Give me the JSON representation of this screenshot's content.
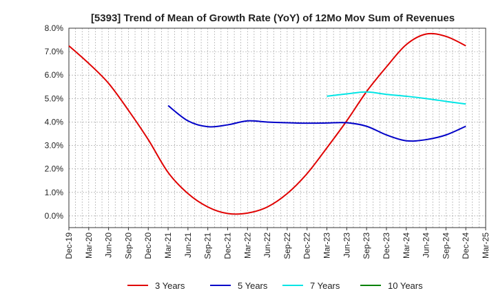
{
  "chart_data": {
    "type": "line",
    "title": "[5393]  Trend of Mean of Growth Rate (YoY) of 12Mo Mov Sum of Revenues",
    "xlabel": "",
    "ylabel": "",
    "ylim": [
      -0.5,
      8.0
    ],
    "yticks": [
      0.0,
      1.0,
      2.0,
      3.0,
      4.0,
      5.0,
      6.0,
      7.0,
      8.0
    ],
    "ytick_labels": [
      "0.0%",
      "1.0%",
      "2.0%",
      "3.0%",
      "4.0%",
      "5.0%",
      "6.0%",
      "7.0%",
      "8.0%"
    ],
    "categories": [
      "Dec-19",
      "Mar-20",
      "Jun-20",
      "Sep-20",
      "Dec-20",
      "Mar-21",
      "Jun-21",
      "Sep-21",
      "Dec-21",
      "Mar-22",
      "Jun-22",
      "Sep-22",
      "Dec-22",
      "Mar-23",
      "Jun-23",
      "Sep-23",
      "Dec-23",
      "Mar-24",
      "Jun-24",
      "Sep-24",
      "Dec-24",
      "Mar-25"
    ],
    "grid": true,
    "legend_position": "bottom",
    "series": [
      {
        "name": "3 Years",
        "color": "#e00000",
        "values": [
          7.25,
          6.5,
          5.65,
          4.5,
          3.25,
          1.85,
          0.95,
          0.38,
          0.1,
          0.12,
          0.38,
          0.95,
          1.8,
          2.9,
          4.05,
          5.3,
          6.35,
          7.3,
          7.75,
          7.65,
          7.25,
          null
        ]
      },
      {
        "name": "5 Years",
        "color": "#0000c8",
        "values": [
          null,
          null,
          null,
          null,
          null,
          4.7,
          4.05,
          3.8,
          3.88,
          4.05,
          4.0,
          3.97,
          3.95,
          3.96,
          3.97,
          3.82,
          3.45,
          3.2,
          3.25,
          3.45,
          3.82,
          null
        ]
      },
      {
        "name": "7 Years",
        "color": "#00e5e5",
        "values": [
          null,
          null,
          null,
          null,
          null,
          null,
          null,
          null,
          null,
          null,
          null,
          null,
          null,
          5.1,
          5.2,
          5.28,
          5.18,
          5.1,
          5.0,
          4.88,
          4.77,
          null
        ]
      },
      {
        "name": "10 Years",
        "color": "#008000",
        "values": [
          null,
          null,
          null,
          null,
          null,
          null,
          null,
          null,
          null,
          null,
          null,
          null,
          null,
          null,
          null,
          null,
          null,
          null,
          null,
          null,
          null,
          null
        ]
      }
    ]
  }
}
